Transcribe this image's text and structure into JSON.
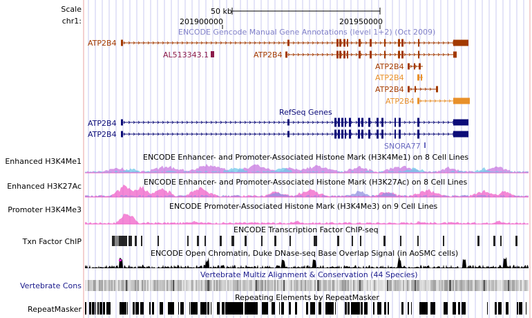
{
  "ruler": {
    "scale_label": "Scale",
    "chrom_label": "chr1:",
    "scale_bar": "50 kb",
    "positions": [
      "201900000",
      "201950000"
    ]
  },
  "tracks": {
    "gencode": {
      "title": "ENCODE Gencode Manual Gene Annotations (level 1+2) (Oct 2009)",
      "color": "#8080c8",
      "genes": [
        {
          "name": "ATP2B4",
          "color": "#a33a00"
        },
        {
          "name": "AL513343.1",
          "color": "#8b1a4a"
        },
        {
          "name": "ATP2B4",
          "color": "#a33a00"
        },
        {
          "name": "ATP2B4",
          "color": "#a33a00"
        },
        {
          "name": "ATP2B4",
          "color": "#e8902a"
        },
        {
          "name": "ATP2B4",
          "color": "#a33a00"
        },
        {
          "name": "ATP2B4",
          "color": "#e8902a"
        }
      ]
    },
    "refseq": {
      "title": "RefSeq Genes",
      "color": "#0c0c78",
      "genes": [
        {
          "name": "ATP2B4"
        },
        {
          "name": "ATP2B4"
        },
        {
          "name": "SNORA77",
          "color": "#6a6ac0"
        }
      ]
    },
    "h3k4me1": {
      "label": "Enhanced H3K4Me1",
      "title": "ENCODE Enhancer- and Promoter-Associated Histone Mark (H3K4Me1) on 8 Cell Lines"
    },
    "h3k27ac": {
      "label": "Enhanced H3K27Ac",
      "title": "ENCODE Enhancer- and Promoter-Associated Histone Mark (H3K27Ac) on 8 Cell Lines"
    },
    "h3k4me3": {
      "label": "Promoter H3K4Me3",
      "title": "ENCODE Promoter-Associated Histone Mark (H3K4Me3) on 9 Cell Lines"
    },
    "txn": {
      "label": "Txn Factor ChIP",
      "title": "ENCODE Transcription Factor ChIP-seq"
    },
    "dnase": {
      "title": "ENCODE Open Chromatin, Duke DNase-seq Base Overlap Signal (in AoSMC cells)"
    },
    "cons": {
      "label": "Vertebrate Cons",
      "title": "Vertebrate Multiz Alignment & Conservation (44 Species)"
    },
    "rmsk": {
      "label": "RepeatMasker",
      "title": "Repeating Elements by RepeatMasker"
    }
  },
  "colors": {
    "guide": "#c8c8f0",
    "divider": "#e8a0a0",
    "pink": "#f060c8",
    "magenta": "#e020d0"
  }
}
